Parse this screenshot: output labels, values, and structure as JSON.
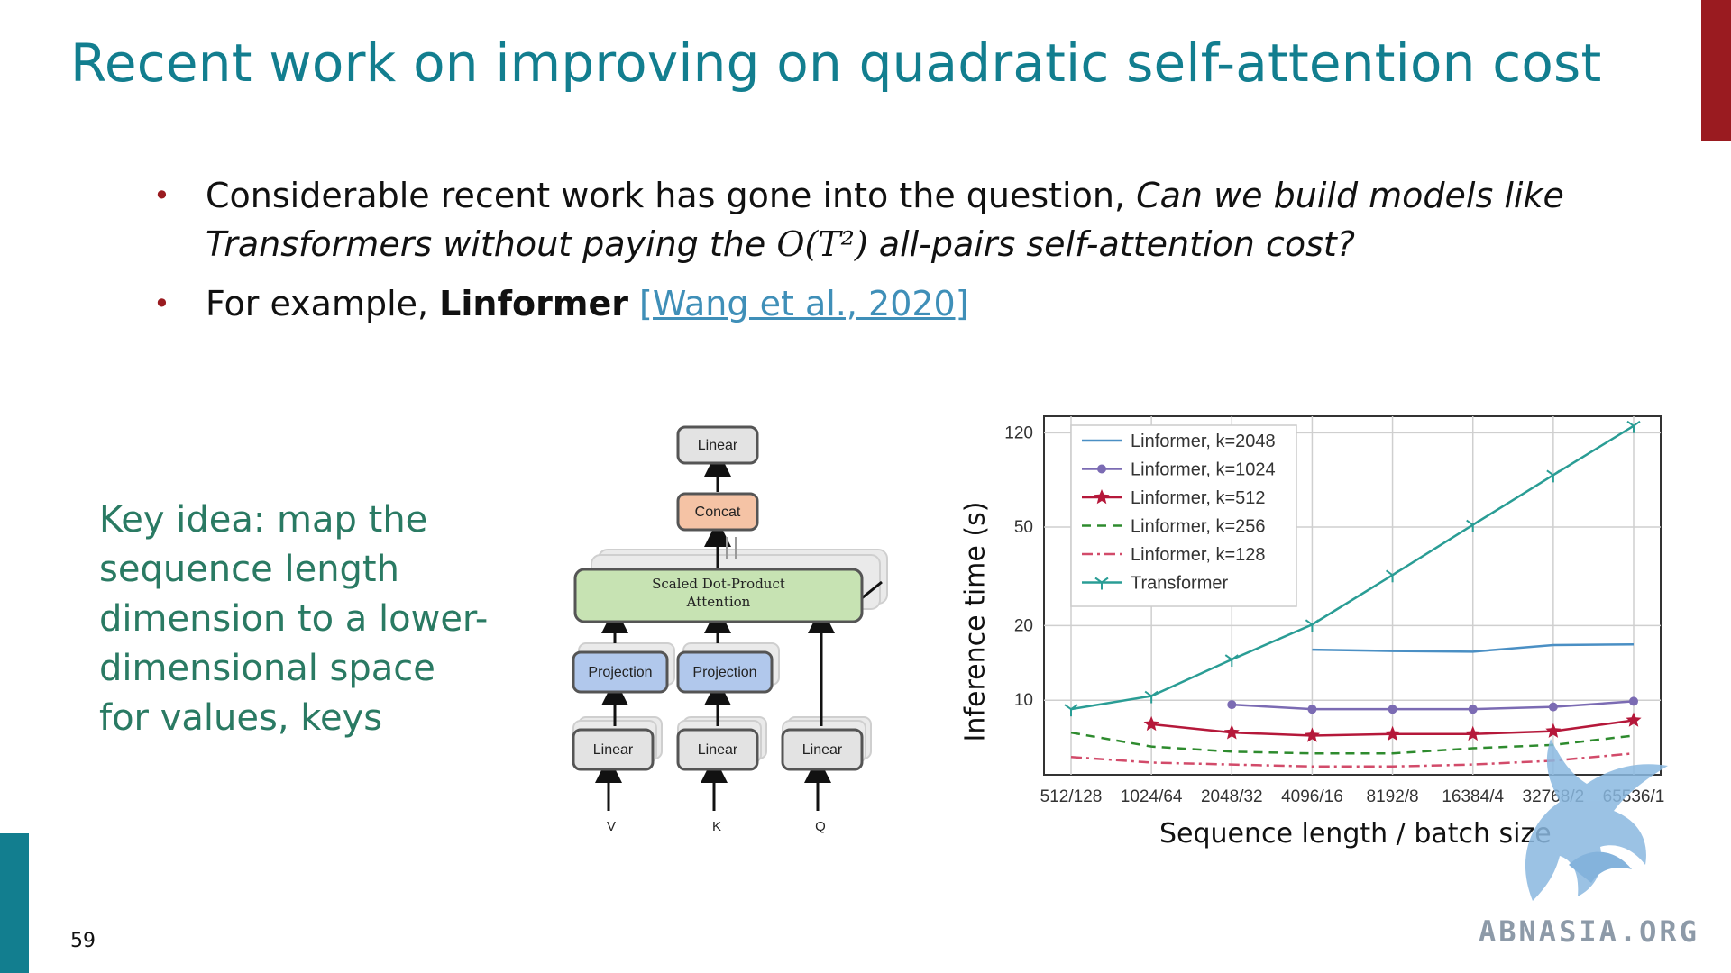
{
  "slide": {
    "title": "Recent work on improving on quadratic self-attention cost",
    "page_number": "59",
    "bullets": {
      "b1_line1_plain": "Considerable recent work has gone into the question, ",
      "b1_line1_italic": "Can we build models like",
      "b1_line2_italic": "Transformers without paying the ",
      "b1_math": "O(T²)",
      "b1_line2_tail": " all-pairs self-attention cost?",
      "b2_plain": "For example, ",
      "b2_bold": "Linformer",
      "b2_link": "[Wang et al., 2020]"
    },
    "key_idea": "Key idea: map the sequence length dimension to a lower-dimensional space for values, keys",
    "watermark": "ABNASIA.ORG",
    "colors": {
      "title": "#127e8f",
      "accent_red": "#9a1b20",
      "key_idea": "#2a7a63",
      "link": "#3f8fb8"
    }
  },
  "diagram": {
    "linear_top": "Linear",
    "concat": "Concat",
    "attention": "Scaled Dot-Product Attention",
    "projection_left": "Projection",
    "projection_right": "Projection",
    "linear_v": "Linear",
    "linear_k": "Linear",
    "linear_q": "Linear",
    "input_v": "V",
    "input_k": "K",
    "input_q": "Q"
  },
  "chart_data": {
    "type": "line",
    "xlabel": "Sequence length / batch size",
    "ylabel": "Inference time (s)",
    "y_scale": "log",
    "yticks": [
      10,
      20,
      50,
      120
    ],
    "categories": [
      "512/128",
      "1024/64",
      "2048/32",
      "4096/16",
      "8192/8",
      "16384/4",
      "32768/2",
      "65536/1"
    ],
    "grid": true,
    "legend_position": "top-left",
    "series": [
      {
        "name": "Linformer, k=2048",
        "color": "#4a8fc4",
        "dash": "solid",
        "marker": "none",
        "values": [
          null,
          null,
          null,
          16,
          15.8,
          15.7,
          16.7,
          16.8
        ]
      },
      {
        "name": "Linformer, k=1024",
        "color": "#7b6bb3",
        "dash": "solid",
        "marker": "circle",
        "values": [
          null,
          null,
          9.6,
          9.2,
          9.2,
          9.2,
          9.4,
          9.9
        ]
      },
      {
        "name": "Linformer, k=512",
        "color": "#b5183a",
        "dash": "solid",
        "marker": "star",
        "values": [
          null,
          8.0,
          7.4,
          7.2,
          7.3,
          7.3,
          7.5,
          8.3
        ]
      },
      {
        "name": "Linformer, k=256",
        "color": "#2e8b2e",
        "dash": "dashed",
        "marker": "none",
        "values": [
          7.4,
          6.5,
          6.2,
          6.1,
          6.1,
          6.4,
          6.6,
          7.2
        ]
      },
      {
        "name": "Linformer, k=128",
        "color": "#d24b6a",
        "dash": "dashdot",
        "marker": "none",
        "values": [
          5.9,
          5.6,
          5.5,
          5.4,
          5.4,
          5.5,
          5.7,
          6.1
        ]
      },
      {
        "name": "Transformer",
        "color": "#2a9d95",
        "dash": "solid",
        "marker": "tri",
        "values": [
          9.2,
          10.4,
          14.6,
          20.2,
          32,
          51,
          81,
          128
        ]
      }
    ]
  }
}
